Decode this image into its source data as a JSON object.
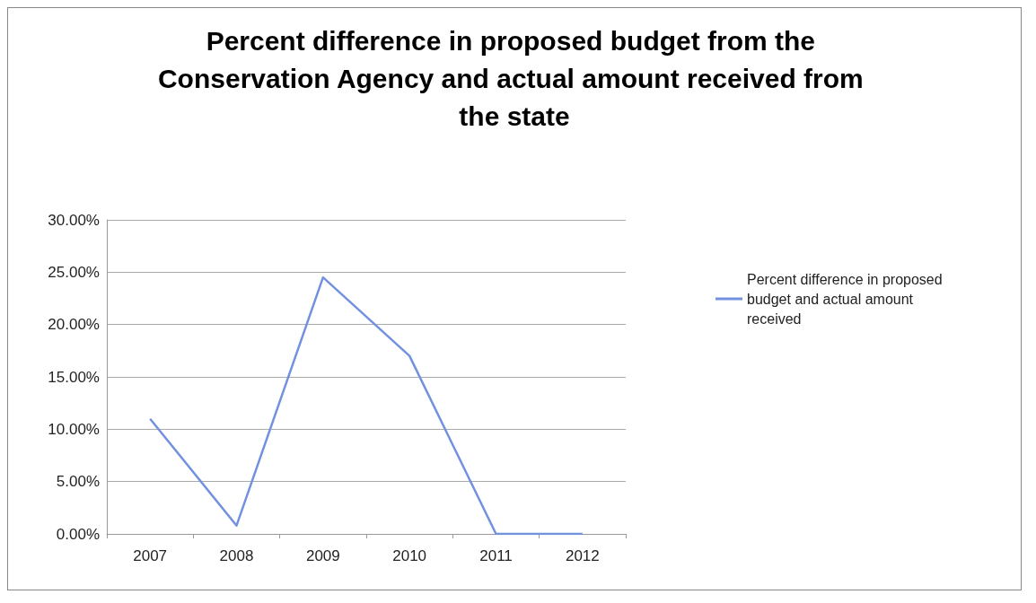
{
  "chart_data": {
    "type": "line",
    "title": "Percent difference in proposed budget from the Conservation Agency and actual amount received from the state",
    "categories": [
      "2007",
      "2008",
      "2009",
      "2010",
      "2011",
      "2012"
    ],
    "series": [
      {
        "name": "Percent difference in proposed budget and actual amount received",
        "color": "#7291de",
        "values": [
          11.0,
          0.8,
          24.5,
          17.0,
          0,
          0
        ]
      }
    ],
    "ylim": [
      0,
      30
    ],
    "yticks": [
      {
        "value": 0,
        "label": "0.00%"
      },
      {
        "value": 5,
        "label": "5.00%"
      },
      {
        "value": 10,
        "label": "10.00%"
      },
      {
        "value": 15,
        "label": "15.00%"
      },
      {
        "value": 20,
        "label": "20.00%"
      },
      {
        "value": 25,
        "label": "25.00%"
      },
      {
        "value": 30,
        "label": "30.00%"
      }
    ],
    "grid": "y",
    "legend": "right",
    "marker": "none",
    "line_style": "solid"
  }
}
